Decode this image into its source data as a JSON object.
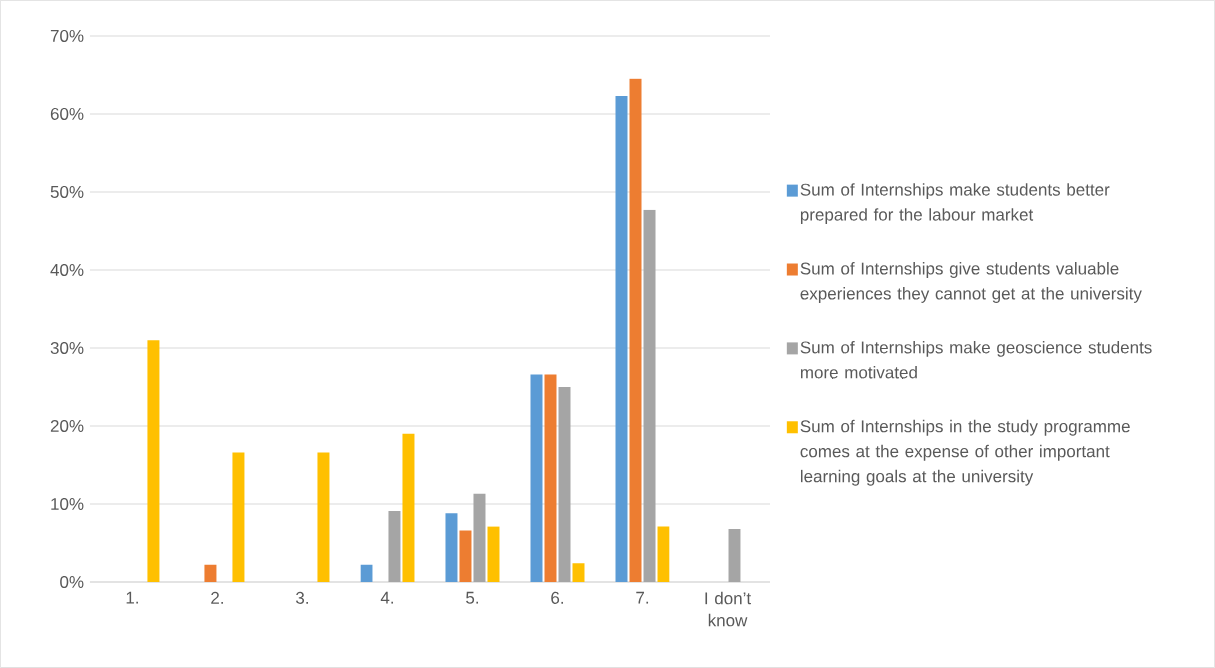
{
  "chart_data": {
    "type": "bar",
    "categories": [
      "1.",
      "2.",
      "3.",
      "4.",
      "5.",
      "6.",
      "7.",
      "I don’t know"
    ],
    "series": [
      {
        "name": "Sum of Internships make students better prepared for the labour market",
        "color": "#5b9bd5",
        "values": [
          null,
          null,
          null,
          2.2,
          8.8,
          26.6,
          62.3,
          null
        ]
      },
      {
        "name": "Sum of Internships give students valuable experiences they cannot get at the university",
        "color": "#ed7d31",
        "values": [
          null,
          2.2,
          null,
          null,
          6.6,
          26.6,
          64.5,
          null
        ]
      },
      {
        "name": "Sum of Internships make geoscience students more motivated",
        "color": "#a5a5a5",
        "values": [
          null,
          null,
          null,
          9.1,
          11.3,
          25.0,
          47.7,
          6.8
        ]
      },
      {
        "name": "Sum of Internships in the study programme comes at the expense of other important learning goals at the university",
        "color": "#ffc000",
        "values": [
          31.0,
          16.6,
          16.6,
          19.0,
          7.1,
          2.4,
          7.1,
          null
        ]
      }
    ],
    "ylim": [
      0,
      70
    ],
    "yticks": [
      {
        "value": 0,
        "label": "0%"
      },
      {
        "value": 10,
        "label": "10%"
      },
      {
        "value": 20,
        "label": "20%"
      },
      {
        "value": 30,
        "label": "30%"
      },
      {
        "value": 40,
        "label": "40%"
      },
      {
        "value": 50,
        "label": "50%"
      },
      {
        "value": 60,
        "label": "60%"
      },
      {
        "value": 70,
        "label": "70%"
      }
    ],
    "grid": "y",
    "legend": "right"
  }
}
